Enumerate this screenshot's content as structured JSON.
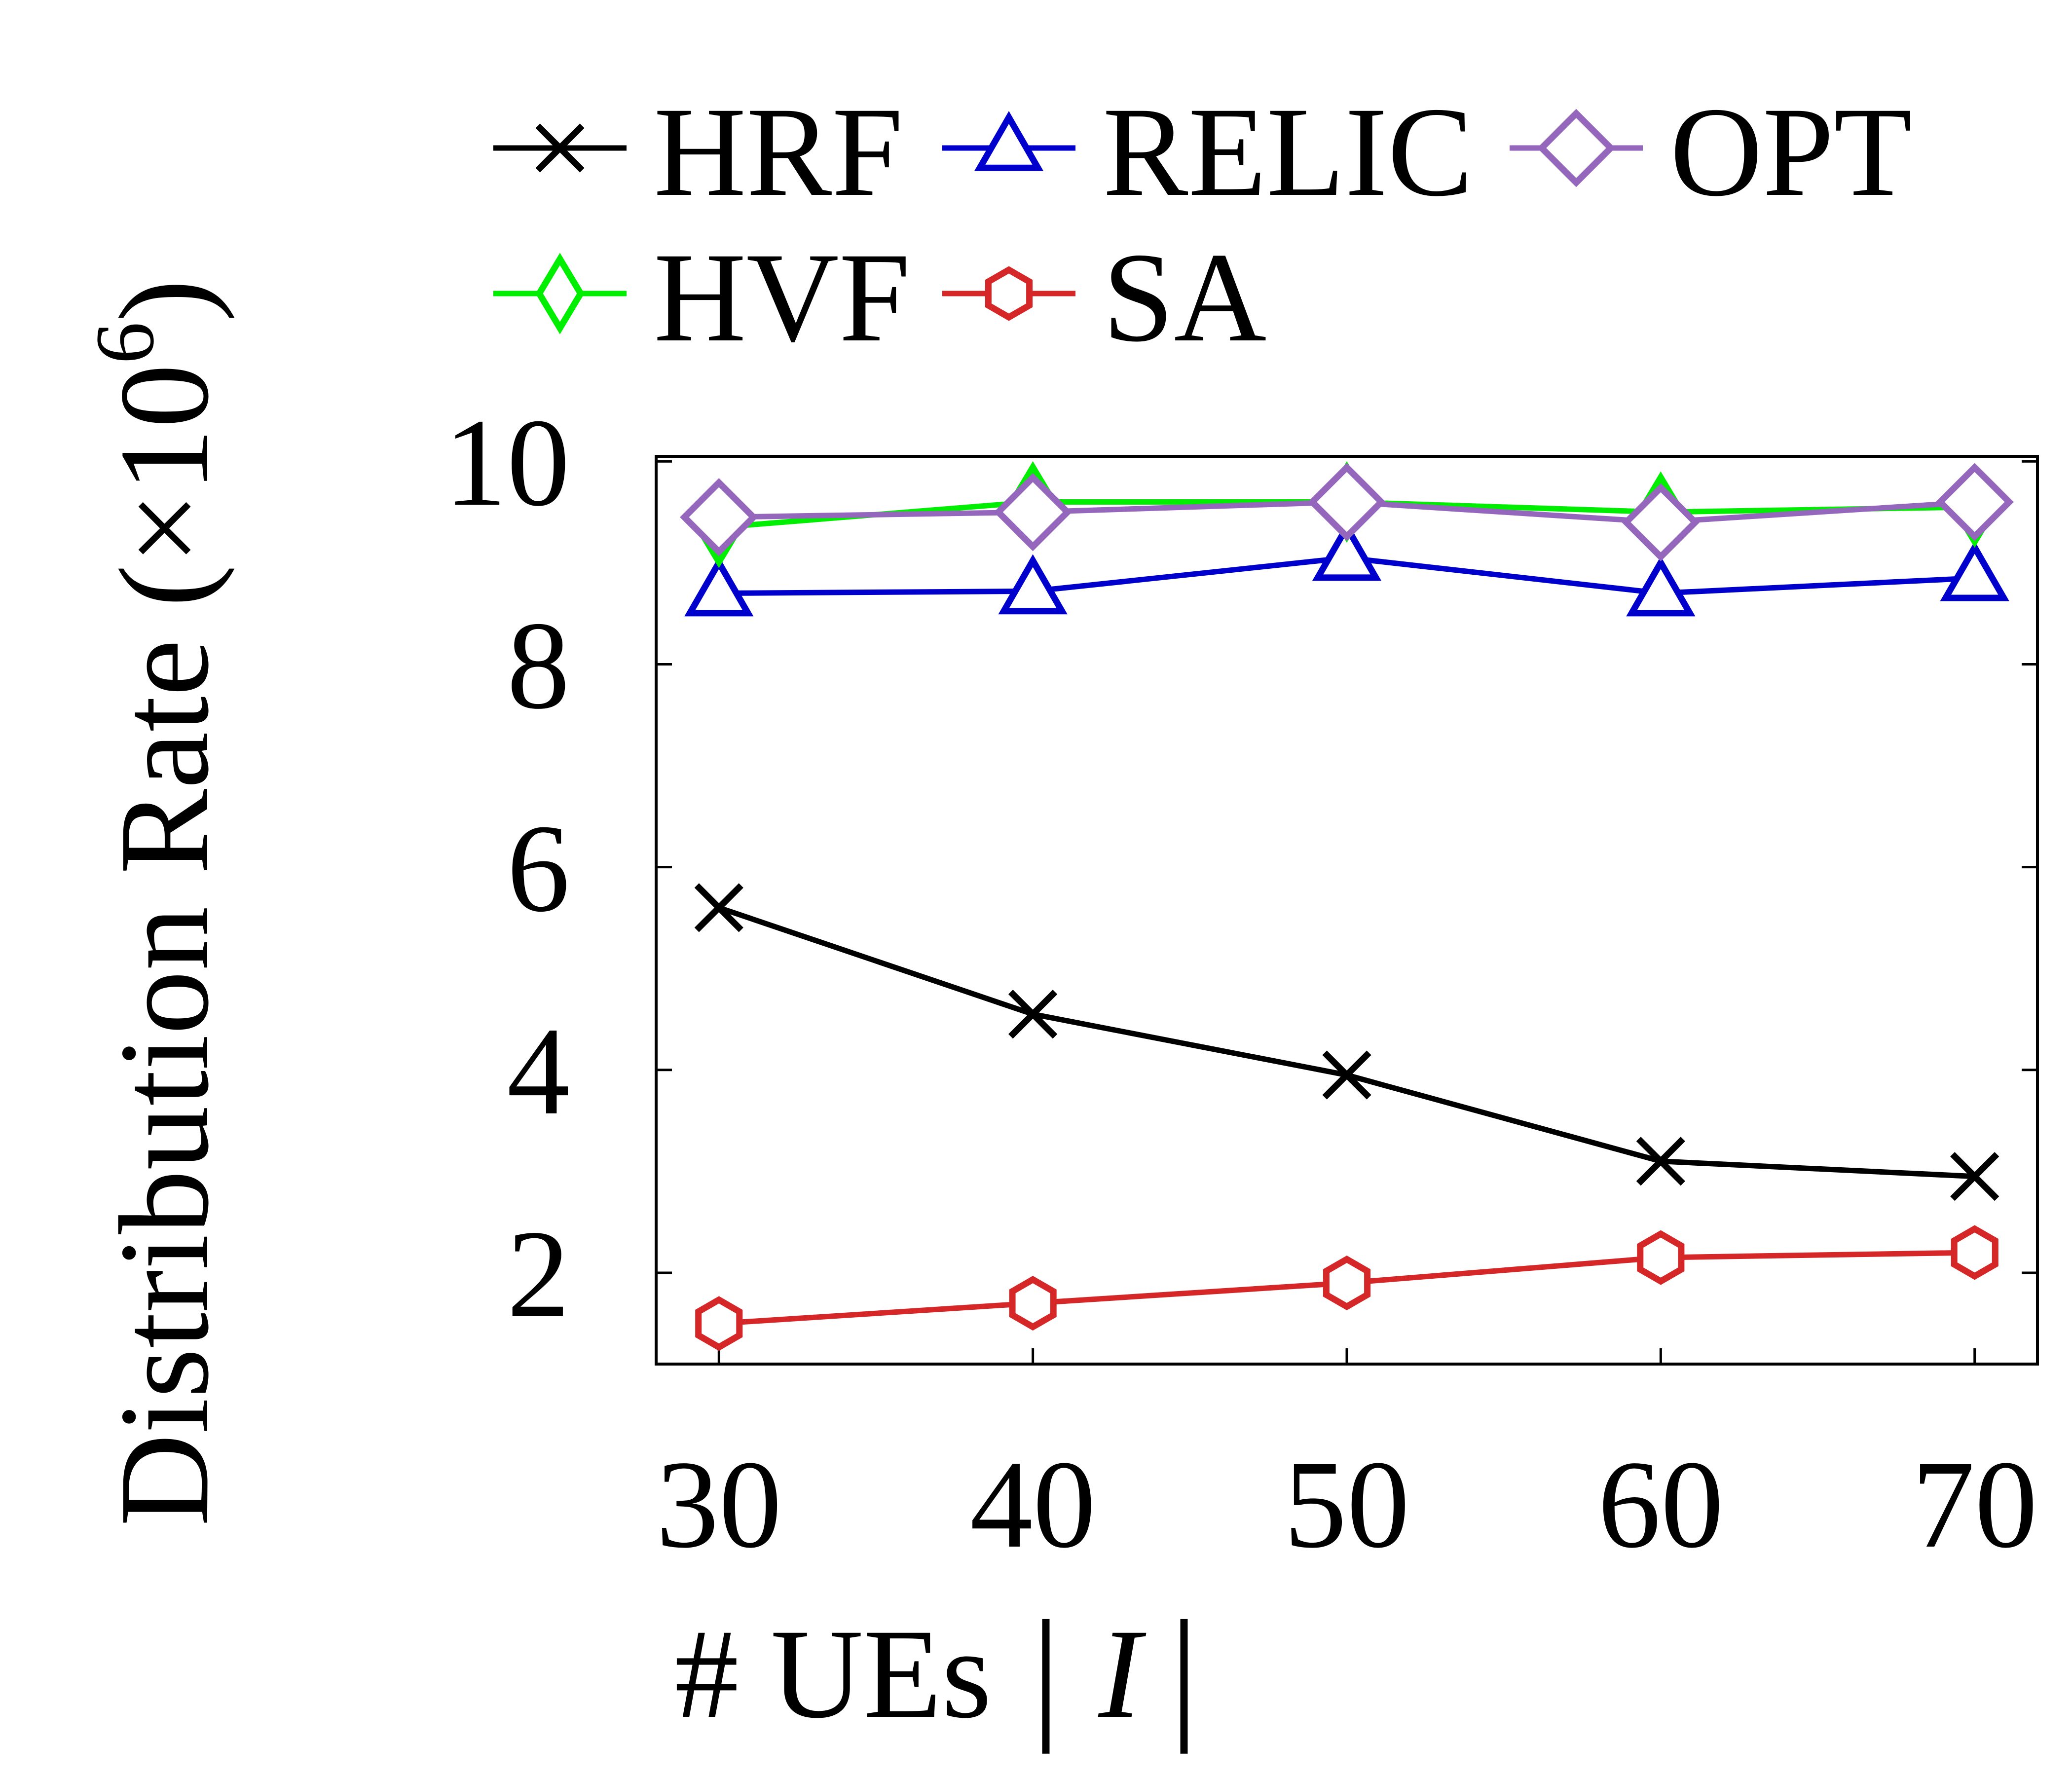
{
  "chart_data": {
    "type": "line",
    "title": "",
    "xlabel_prefix": "# UEs",
    "xlabel_bar_left": "|",
    "xlabel_symbol": "I",
    "xlabel_bar_right": "|",
    "ylabel": "Distribution Rate (×10",
    "ylabel_exponent": "6",
    "ylabel_close": ")",
    "x": [
      30,
      40,
      50,
      60,
      70
    ],
    "x_tick_labels": [
      "30",
      "40",
      "50",
      "60",
      "70"
    ],
    "y_ticks": [
      2,
      4,
      6,
      8,
      10
    ],
    "y_tick_labels": [
      "2",
      "4",
      "6",
      "8",
      "10"
    ],
    "xlim": [
      28,
      72
    ],
    "ylim": [
      1.1,
      10.05
    ],
    "grid": false,
    "legend_placement": "top",
    "series": [
      {
        "name": "HRF",
        "color": "#000000",
        "marker": "x",
        "values": [
          5.6,
          4.55,
          3.95,
          3.1,
          2.95
        ]
      },
      {
        "name": "RELIC",
        "color": "#0000cc",
        "marker": "triangle",
        "values": [
          8.7,
          8.72,
          9.05,
          8.7,
          8.85
        ]
      },
      {
        "name": "OPT",
        "color": "#9467bd",
        "marker": "diamond",
        "values": [
          9.45,
          9.5,
          9.6,
          9.4,
          9.6
        ]
      },
      {
        "name": "HVF",
        "color": "#00ee00",
        "marker": "thin-diamond",
        "values": [
          9.35,
          9.6,
          9.6,
          9.5,
          9.55
        ]
      },
      {
        "name": "SA",
        "color": "#d62728",
        "marker": "hexagon",
        "values": [
          1.5,
          1.7,
          1.9,
          2.15,
          2.2
        ]
      }
    ]
  }
}
